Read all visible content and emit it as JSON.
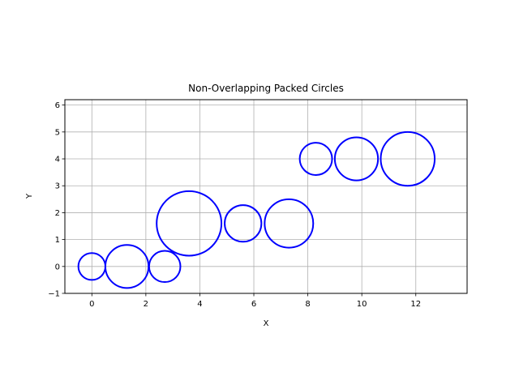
{
  "chart_data": {
    "type": "scatter",
    "title": "Non-Overlapping Packed Circles",
    "xlabel": "X",
    "ylabel": "Y",
    "xlim": [
      -1.0,
      13.9
    ],
    "ylim": [
      -1.0,
      6.2
    ],
    "xticks": [
      0,
      2,
      4,
      6,
      8,
      10,
      12
    ],
    "yticks": [
      -1,
      0,
      1,
      2,
      3,
      4,
      5,
      6
    ],
    "grid": true,
    "aspect": "equal",
    "circle_color": "#0000ff",
    "grid_color": "#b0b0b0",
    "circles": [
      {
        "x": 0.0,
        "y": 0.0,
        "r": 0.5
      },
      {
        "x": 1.3,
        "y": 0.0,
        "r": 0.8
      },
      {
        "x": 2.7,
        "y": 0.0,
        "r": 0.58
      },
      {
        "x": 3.6,
        "y": 1.6,
        "r": 1.2
      },
      {
        "x": 5.6,
        "y": 1.6,
        "r": 0.68
      },
      {
        "x": 7.3,
        "y": 1.6,
        "r": 0.9
      },
      {
        "x": 8.3,
        "y": 4.0,
        "r": 0.6
      },
      {
        "x": 9.8,
        "y": 4.0,
        "r": 0.8
      },
      {
        "x": 11.7,
        "y": 4.0,
        "r": 1.0
      }
    ]
  }
}
